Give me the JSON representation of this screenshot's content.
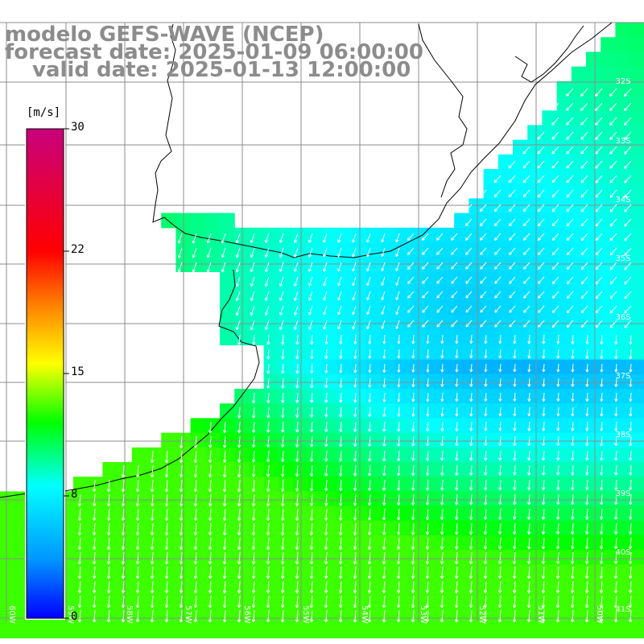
{
  "title": {
    "model": "modelo GEFS-WAVE (NCEP)",
    "forecast": "forecast date: 2025-01-09 06:00:00",
    "valid": "valid date: 2025-01-13 12:00:00"
  },
  "colorbar": {
    "unit": "[m/s]",
    "ticks": [
      "30",
      "22",
      "15",
      "8",
      "0"
    ]
  },
  "lat_labels": [
    "32S",
    "33S",
    "34S",
    "35S",
    "36S",
    "37S",
    "38S",
    "39S",
    "40S",
    "41S"
  ],
  "lon_labels": [
    "60W",
    "59W",
    "58W",
    "57W",
    "56W",
    "55W",
    "54W",
    "53W",
    "52W",
    "51W",
    "50W"
  ],
  "colors": {
    "land": "#ffffff",
    "grid": "#8c8c8c",
    "coast": "#000000",
    "arrow": "#ffffff",
    "title": "#8c8c8c"
  }
}
